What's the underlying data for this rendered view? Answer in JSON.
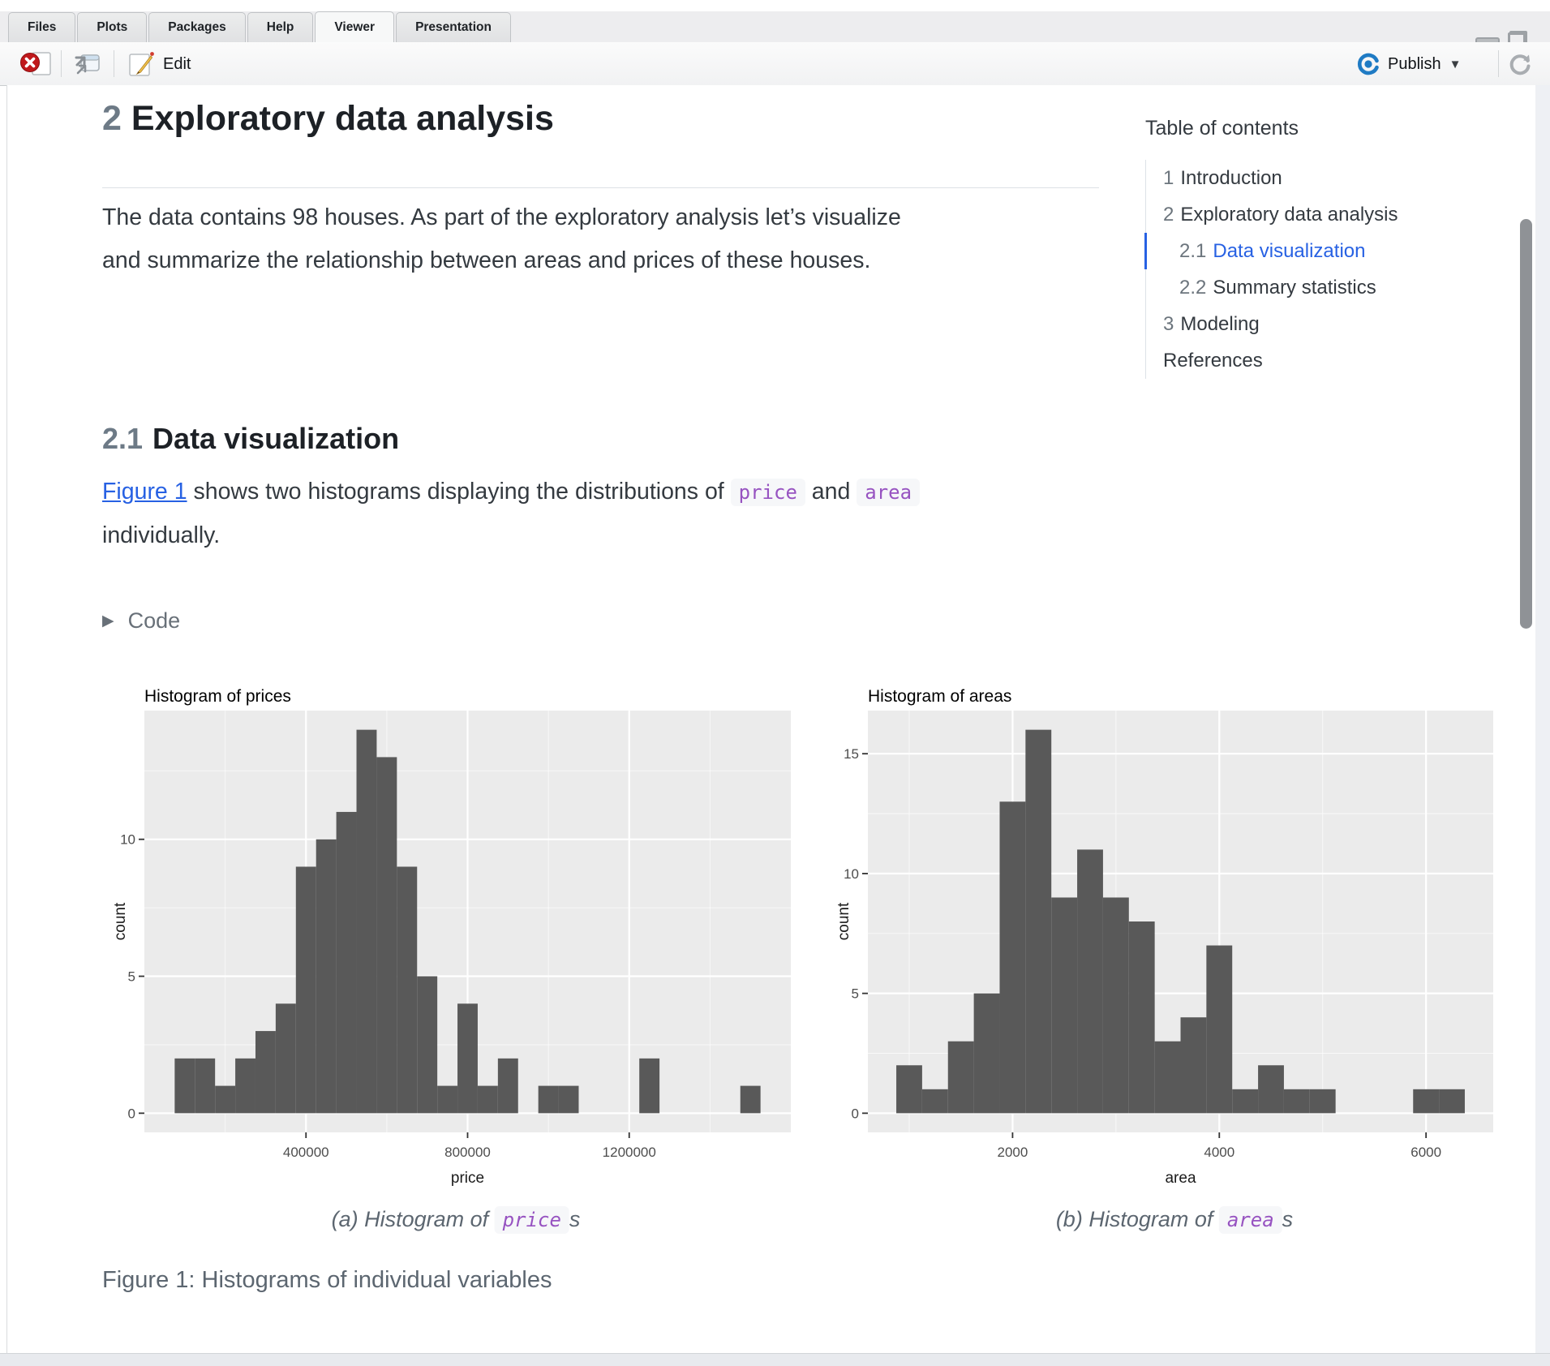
{
  "tabs": {
    "items": [
      {
        "label": "Files",
        "active": false
      },
      {
        "label": "Plots",
        "active": false
      },
      {
        "label": "Packages",
        "active": false
      },
      {
        "label": "Help",
        "active": false
      },
      {
        "label": "Viewer",
        "active": true
      },
      {
        "label": "Presentation",
        "active": false
      }
    ]
  },
  "toolbar": {
    "edit_label": "Edit",
    "publish_label": "Publish"
  },
  "toc": {
    "heading": "Table of contents",
    "items": [
      {
        "number": "1",
        "label": "Introduction",
        "level": 1,
        "active": false
      },
      {
        "number": "2",
        "label": "Exploratory data analysis",
        "level": 1,
        "active": false
      },
      {
        "number": "2.1",
        "label": "Data visualization",
        "level": 2,
        "active": true
      },
      {
        "number": "2.2",
        "label": "Summary statistics",
        "level": 2,
        "active": false
      },
      {
        "number": "3",
        "label": "Modeling",
        "level": 1,
        "active": false
      },
      {
        "number": "",
        "label": "References",
        "level": 1,
        "active": false
      }
    ]
  },
  "document": {
    "section_number": "2",
    "section_title": "Exploratory data analysis",
    "intro_paragraph": "The data contains 98 houses. As part of the exploratory analysis let’s visualize and summarize the relationship between areas and prices of these houses.",
    "subsection_number": "2.1",
    "subsection_title": "Data visualization",
    "figure_link_text": "Figure 1",
    "para2_mid": " shows two histograms displaying the distributions of ",
    "code_price": "price",
    "para2_and": " and ",
    "code_area": "area",
    "para2_end": " individually.",
    "code_toggle_label": "Code",
    "caption_a_prefix": "(a) Histogram of ",
    "caption_a_code": "price",
    "caption_a_suffix": "s",
    "caption_b_prefix": "(b) Histogram of ",
    "caption_b_code": "area",
    "caption_b_suffix": "s",
    "figure_caption": "Figure 1: Histograms of individual variables"
  },
  "colors": {
    "accent_blue": "#2761e3",
    "code_purple": "#9753c1",
    "bar_fill": "#595959",
    "panel_bg": "#ebebeb",
    "grid_major": "#ffffff",
    "publish_blue": "#1f7bc4",
    "stop_red": "#c0191c"
  },
  "chart_data": [
    {
      "type": "bar",
      "title": "Histogram of prices",
      "xlabel": "price",
      "ylabel": "count",
      "bin_start": 75000,
      "bin_width": 50000,
      "counts": [
        2,
        2,
        1,
        2,
        3,
        4,
        9,
        10,
        11,
        14,
        13,
        9,
        5,
        1,
        4,
        1,
        2,
        0,
        1,
        1,
        0,
        0,
        0,
        2,
        0,
        0,
        0,
        0,
        1
      ],
      "total_count": 98,
      "x_ticks": [
        400000,
        800000,
        1200000
      ],
      "x_minor": [
        200000,
        600000,
        1000000,
        1400000
      ],
      "y_ticks": [
        0,
        5,
        10
      ],
      "y_minor": [
        2.5,
        7.5,
        12.5
      ],
      "xlim": [
        0,
        1600000
      ],
      "ylim": [
        -0.7,
        14.7
      ],
      "grid": true,
      "legend": "none"
    },
    {
      "type": "bar",
      "title": "Histogram of areas",
      "xlabel": "area",
      "ylabel": "count",
      "bin_start": 875,
      "bin_width": 250,
      "counts": [
        2,
        1,
        3,
        5,
        13,
        16,
        9,
        11,
        9,
        8,
        3,
        4,
        7,
        1,
        2,
        1,
        1,
        0,
        0,
        0,
        1,
        1
      ],
      "total_count": 98,
      "x_ticks": [
        2000,
        4000,
        6000
      ],
      "x_minor": [
        1000,
        3000,
        5000
      ],
      "y_ticks": [
        0,
        5,
        10,
        15
      ],
      "y_minor": [
        2.5,
        7.5,
        12.5
      ],
      "xlim": [
        600,
        6650
      ],
      "ylim": [
        -0.8,
        16.8
      ],
      "grid": true,
      "legend": "none"
    }
  ]
}
